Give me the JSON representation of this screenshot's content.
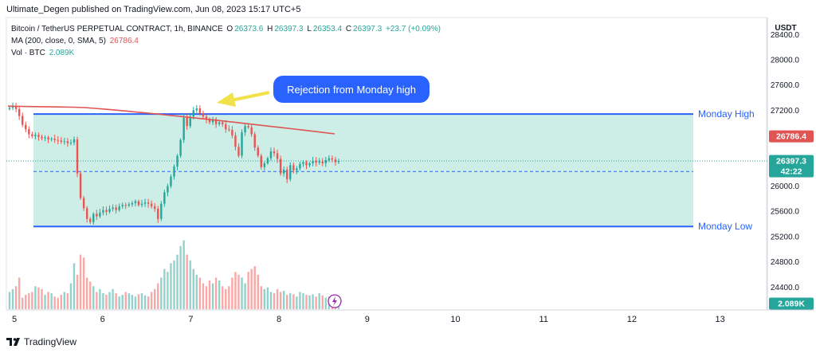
{
  "header": {
    "publisher": "Ultimate_Degen published on TradingView.com, Jun 08, 2023 15:17 UTC+5"
  },
  "legend": {
    "symbol": "Bitcoin / TetherUS PERPETUAL CONTRACT, 1h, BINANCE",
    "o_label": "O",
    "o": "26373.6",
    "h_label": "H",
    "h": "26397.3",
    "l_label": "L",
    "l": "26353.4",
    "c_label": "C",
    "c": "26397.3",
    "change": "+23.7 (+0.09%)",
    "ma_label": "MA (200, close, 0, SMA, 5)",
    "ma_value": "26786.4",
    "vol_label": "Vol · BTC",
    "vol_value": "2.089K"
  },
  "price_axis": {
    "currency": "USDT"
  },
  "footer": {
    "brand": "TradingView"
  },
  "colors": {
    "up": "#26a69a",
    "down": "#ef5350",
    "ma": "#e05454",
    "level": "#2962ff",
    "zone": "#cdeee6",
    "callout": "#2962ff"
  },
  "chart_data": {
    "type": "candlestick",
    "title": "Bitcoin / TetherUS PERPETUAL CONTRACT, 1h, BINANCE",
    "x_ticks": [
      "5",
      "6",
      "7",
      "8",
      "9",
      "10",
      "11",
      "12",
      "13"
    ],
    "y_ticks": [
      "24400.0",
      "24800.0",
      "25200.0",
      "25600.0",
      "26000.0",
      "26400.0",
      "26800.0",
      "27200.0",
      "27600.0",
      "28000.0",
      "28400.0"
    ],
    "ylim": [
      24150,
      28500
    ],
    "levels": [
      {
        "name": "Monday High",
        "price": 27140
      },
      {
        "name": "Monday Low",
        "price": 25360
      }
    ],
    "dashed_level": 26230,
    "annotation": "Rejection from Monday high",
    "price_labels": {
      "ma": "26786.4",
      "last": "26397.3",
      "countdown": "42:22",
      "volume": "2.089K"
    },
    "candles_close": [
      27240,
      27260,
      27220,
      27110,
      26970,
      26900,
      26820,
      26790,
      26810,
      26780,
      26760,
      26770,
      26740,
      26750,
      26730,
      26720,
      26700,
      26710,
      26680,
      26690,
      26740,
      26200,
      25810,
      25650,
      25480,
      25430,
      25560,
      25520,
      25580,
      25620,
      25590,
      25640,
      25660,
      25620,
      25680,
      25700,
      25690,
      25710,
      25730,
      25760,
      25700,
      25720,
      25740,
      25720,
      25680,
      25640,
      25480,
      25720,
      25900,
      26000,
      26150,
      26310,
      26480,
      26730,
      27080,
      26950,
      27100,
      27200,
      27230,
      27150,
      27100,
      27050,
      27010,
      27060,
      26980,
      27010,
      26980,
      26900,
      26890,
      26800,
      26620,
      26480,
      26850,
      26950,
      26930,
      26820,
      26610,
      26480,
      26300,
      26360,
      26440,
      26550,
      26520,
      26430,
      26200,
      26260,
      26110,
      26330,
      26250,
      26280,
      26350,
      26380,
      26330,
      26360,
      26400,
      26370,
      26390,
      26360,
      26410,
      26440,
      26420,
      26380,
      26397
    ],
    "volume": [
      30,
      35,
      40,
      55,
      20,
      25,
      28,
      30,
      40,
      38,
      35,
      25,
      30,
      28,
      22,
      20,
      25,
      30,
      28,
      45,
      80,
      60,
      95,
      90,
      55,
      48,
      40,
      30,
      35,
      28,
      25,
      30,
      35,
      28,
      22,
      25,
      30,
      28,
      25,
      22,
      26,
      28,
      24,
      22,
      30,
      35,
      45,
      55,
      70,
      65,
      80,
      85,
      95,
      110,
      120,
      95,
      85,
      70,
      60,
      55,
      45,
      40,
      50,
      45,
      55,
      50,
      40,
      35,
      40,
      55,
      65,
      60,
      55,
      45,
      65,
      70,
      75,
      60,
      40,
      35,
      38,
      30,
      28,
      35,
      30,
      32,
      25,
      28,
      26,
      22,
      30,
      28,
      25,
      24,
      26,
      22,
      28,
      24,
      20,
      22,
      25,
      22,
      20
    ]
  }
}
